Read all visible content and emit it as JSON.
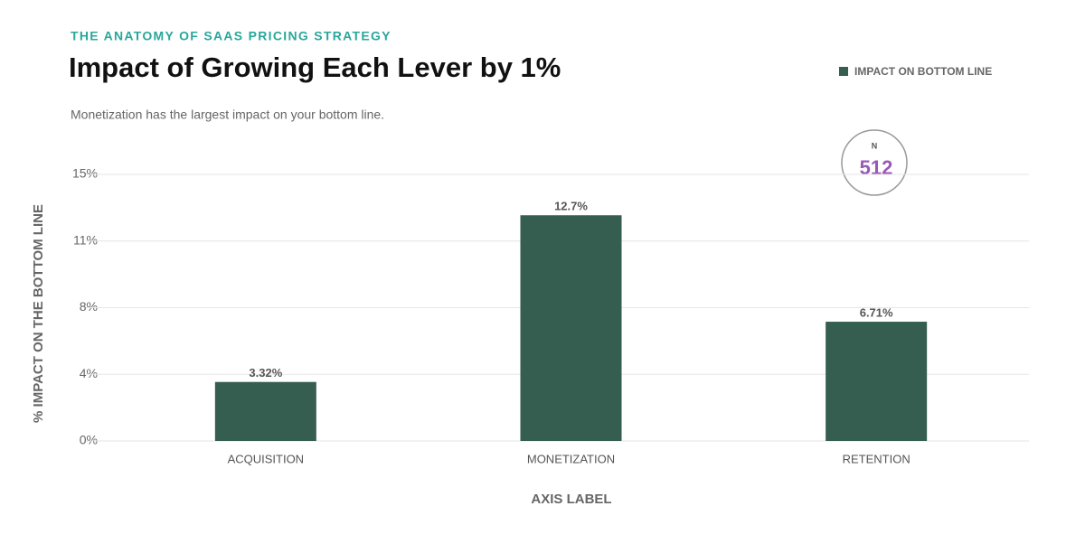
{
  "chart_data": {
    "type": "bar",
    "kicker": "THE ANATOMY OF SAAS PRICING STRATEGY",
    "title": "Impact of Growing Each Lever by 1%",
    "subtitle": "Monetization has the largest impact on your bottom line.",
    "x_label": "AXIS LABEL",
    "y_label": "% IMPACT ON THE BOTTOM LINE",
    "badge": {
      "label": "N",
      "value": 512
    },
    "categories": [
      "ACQUISITION",
      "MONETIZATION",
      "RETENTION"
    ],
    "series": [
      {
        "name": "IMPACT ON BOTTOM LINE",
        "color": "#355e51",
        "values": [
          3.32,
          12.7,
          6.71
        ],
        "value_labels": [
          "3.32%",
          "12.7%",
          "6.71%"
        ]
      }
    ],
    "ylim": [
      0,
      15
    ],
    "yticks": [
      {
        "value": 0,
        "label": "0%"
      },
      {
        "value": 3.75,
        "label": "4%"
      },
      {
        "value": 7.5,
        "label": "8%"
      },
      {
        "value": 11.25,
        "label": "11%"
      },
      {
        "value": 15,
        "label": "15%"
      }
    ],
    "grid": true,
    "legend": "top-right"
  }
}
